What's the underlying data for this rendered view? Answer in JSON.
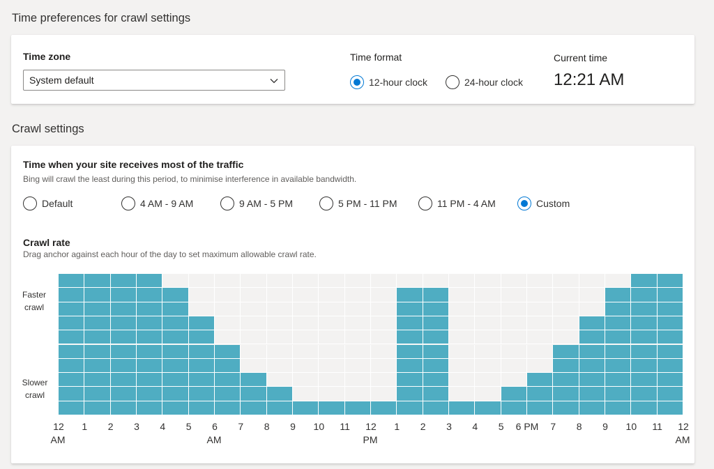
{
  "time_section": {
    "title": "Time preferences for crawl settings",
    "time_zone_label": "Time zone",
    "time_zone_value": "System default",
    "time_format_label": "Time format",
    "format_options": [
      {
        "label": "12-hour clock",
        "selected": true
      },
      {
        "label": "24-hour clock",
        "selected": false
      }
    ],
    "current_time_label": "Current time",
    "current_time_value": "12:21 AM"
  },
  "crawl_section": {
    "title": "Crawl settings",
    "traffic_heading": "Time when your site receives most of the traffic",
    "traffic_description": "Bing will crawl the least during this period, to minimise interference in available bandwidth.",
    "traffic_options": [
      {
        "label": "Default",
        "selected": false
      },
      {
        "label": "4 AM - 9 AM",
        "selected": false
      },
      {
        "label": "9 AM - 5 PM",
        "selected": false
      },
      {
        "label": "5 PM - 11 PM",
        "selected": false
      },
      {
        "label": "11 PM - 4 AM",
        "selected": false
      },
      {
        "label": "Custom",
        "selected": true
      }
    ],
    "crawl_rate_heading": "Crawl rate",
    "crawl_rate_description": "Drag anchor against each hour of the day to set maximum allowable crawl rate.",
    "faster_label": "Faster\ncrawl",
    "slower_label": "Slower\ncrawl",
    "max_level": 10,
    "bar_color": "#4fadc2",
    "accent_color": "#0078d4",
    "hour_labels": [
      "12",
      "1",
      "2",
      "3",
      "4",
      "5",
      "6",
      "7",
      "8",
      "9",
      "10",
      "11",
      "12",
      "1",
      "2",
      "3",
      "4",
      "5",
      "6 PM",
      "7",
      "8",
      "9",
      "10",
      "11",
      "12"
    ],
    "hour_sublabels": [
      "AM",
      "",
      "",
      "",
      "",
      "",
      "AM",
      "",
      "",
      "",
      "",
      "",
      "PM",
      "",
      "",
      "",
      "",
      "",
      "",
      "",
      "",
      "",
      "",
      "",
      "AM"
    ],
    "hourly_levels": [
      10,
      10,
      10,
      10,
      9,
      7,
      5,
      3,
      2,
      1,
      1,
      1,
      1,
      9,
      9,
      1,
      1,
      2,
      3,
      5,
      7,
      9,
      10,
      10
    ]
  }
}
